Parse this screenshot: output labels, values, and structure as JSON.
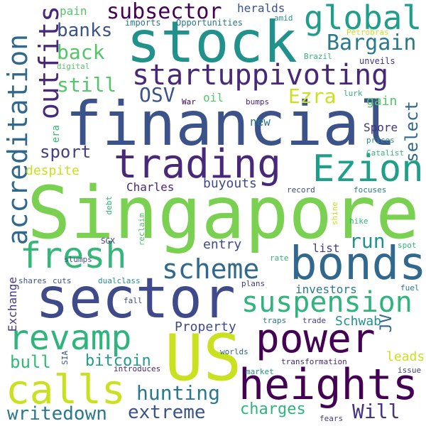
{
  "words": [
    {
      "text": "Singapore",
      "color": "#7ad151"
    },
    {
      "text": "financial",
      "color": "#3b528b"
    },
    {
      "text": "stock",
      "color": "#21918c"
    },
    {
      "text": "sector",
      "color": "#3e4a89"
    },
    {
      "text": "US",
      "color": "#cae11f"
    },
    {
      "text": "heights",
      "color": "#440154"
    },
    {
      "text": "power",
      "color": "#440154"
    },
    {
      "text": "bonds",
      "color": "#31688e"
    },
    {
      "text": "Ezion",
      "color": "#1f9e89"
    },
    {
      "text": "trading",
      "color": "#482878"
    },
    {
      "text": "calls",
      "color": "#cae11f"
    },
    {
      "text": "fresh",
      "color": "#35b779"
    },
    {
      "text": "revamp",
      "color": "#2fb47c"
    },
    {
      "text": "global",
      "color": "#1f9e89"
    },
    {
      "text": "startuppivoting",
      "color": "#482878"
    },
    {
      "text": "accreditation",
      "color": "#31688e"
    },
    {
      "text": "outfits",
      "color": "#482878"
    },
    {
      "text": "suspension",
      "color": "#2fb47c"
    },
    {
      "text": "scheme",
      "color": "#31688e"
    },
    {
      "text": "Bargain",
      "color": "#2a788e"
    },
    {
      "text": "subsector",
      "color": "#440154"
    },
    {
      "text": "hunting",
      "color": "#2a788e"
    },
    {
      "text": "writedown",
      "color": "#2a788e"
    },
    {
      "text": "extreme",
      "color": "#3b528b"
    },
    {
      "text": "banks",
      "color": "#3b528b"
    },
    {
      "text": "back",
      "color": "#54c568"
    },
    {
      "text": "still",
      "color": "#54c568"
    },
    {
      "text": "OSV",
      "color": "#3b528b"
    },
    {
      "text": "Ezra",
      "color": "#cae11f"
    },
    {
      "text": "select",
      "color": "#31688e"
    },
    {
      "text": "sport",
      "color": "#433e85"
    },
    {
      "text": "run",
      "color": "#21918c"
    },
    {
      "text": "JV",
      "color": "#31688e"
    },
    {
      "text": "Will",
      "color": "#46327e"
    },
    {
      "text": "charges",
      "color": "#2fb47c"
    },
    {
      "text": "bull",
      "color": "#35b779"
    },
    {
      "text": "bitcoin",
      "color": "#1f9e89"
    },
    {
      "text": "Property",
      "color": "#3e4a89"
    },
    {
      "text": "investors",
      "color": "#2a788e"
    },
    {
      "text": "Schwab",
      "color": "#21918c"
    },
    {
      "text": "leads",
      "color": "#cae11f"
    },
    {
      "text": "entry",
      "color": "#3e4a89"
    },
    {
      "text": "list",
      "color": "#443983"
    },
    {
      "text": "despite",
      "color": "#cae11f"
    },
    {
      "text": "new",
      "color": "#2a788e"
    },
    {
      "text": "Spore",
      "color": "#46327e"
    },
    {
      "text": "gain",
      "color": "#54c568"
    },
    {
      "text": "buyouts",
      "color": "#3e4a89"
    },
    {
      "text": "Charles",
      "color": "#482878"
    },
    {
      "text": "heralds",
      "color": "#3b528b"
    },
    {
      "text": "oil",
      "color": "#54c568"
    },
    {
      "text": "pain",
      "color": "#54c568"
    },
    {
      "text": "Exchange",
      "color": "#443983"
    },
    {
      "text": "era",
      "color": "#35b779"
    },
    {
      "text": "Opportunities",
      "color": "#2a788e"
    },
    {
      "text": "imports",
      "color": "#2a788e"
    },
    {
      "text": "amid",
      "color": "#21918c"
    },
    {
      "text": "Petrobras",
      "color": "#cae11f"
    },
    {
      "text": "Brazil",
      "color": "#2fb47c"
    },
    {
      "text": "unveils",
      "color": "#46327e"
    },
    {
      "text": "digital",
      "color": "#54c568"
    },
    {
      "text": "War",
      "color": "#440154"
    },
    {
      "text": "bumps",
      "color": "#482878"
    },
    {
      "text": "lurk",
      "color": "#2fb47c"
    },
    {
      "text": "prices",
      "color": "#21918c"
    },
    {
      "text": "Catalist",
      "color": "#35b779"
    },
    {
      "text": "record",
      "color": "#3e4a89"
    },
    {
      "text": "focuses",
      "color": "#2a788e"
    },
    {
      "text": "shine",
      "color": "#cae11f"
    },
    {
      "text": "hike",
      "color": "#35b779"
    },
    {
      "text": "spot",
      "color": "#2fb47c"
    },
    {
      "text": "fuel",
      "color": "#2a788e"
    },
    {
      "text": "rate",
      "color": "#2fb47c"
    },
    {
      "text": "SGX",
      "color": "#443983"
    },
    {
      "text": "reclaim",
      "color": "#54c568"
    },
    {
      "text": "debt",
      "color": "#2fb47c"
    },
    {
      "text": "slumps",
      "color": "#3b528b"
    },
    {
      "text": "shares",
      "color": "#3b528b"
    },
    {
      "text": "cuts",
      "color": "#3b528b"
    },
    {
      "text": "dualclass",
      "color": "#21918c"
    },
    {
      "text": "plans",
      "color": "#443983"
    },
    {
      "text": "fall",
      "color": "#3e4a89"
    },
    {
      "text": "traps",
      "color": "#2a788e"
    },
    {
      "text": "trade",
      "color": "#433e85"
    },
    {
      "text": "worlds",
      "color": "#31688e"
    },
    {
      "text": "SIA",
      "color": "#3b528b"
    },
    {
      "text": "introduces",
      "color": "#482878"
    },
    {
      "text": "market",
      "color": "#21918c"
    },
    {
      "text": "transformation",
      "color": "#482878"
    },
    {
      "text": "issue",
      "color": "#433e85"
    },
    {
      "text": "fears",
      "color": "#443983"
    }
  ]
}
